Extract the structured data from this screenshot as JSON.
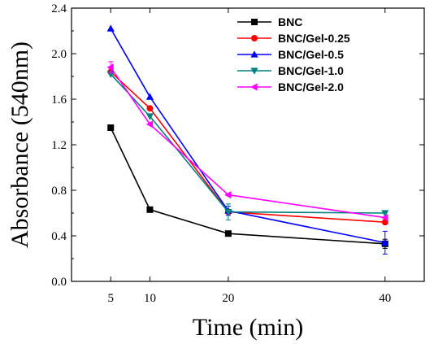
{
  "chart_data": {
    "type": "line",
    "xlabel": "Time (min)",
    "ylabel": "Absorbance (540nm)",
    "x": [
      5,
      10,
      20,
      40
    ],
    "xlim": [
      0,
      45
    ],
    "ylim": [
      0.0,
      2.4
    ],
    "xticks": [
      "5",
      "10",
      "20",
      "40"
    ],
    "yticks": [
      "0.0",
      "0.4",
      "0.8",
      "1.2",
      "1.6",
      "2.0",
      "2.4"
    ],
    "legend_position": "top-right",
    "series": [
      {
        "name": "BNC",
        "values": [
          1.35,
          0.63,
          0.42,
          0.33
        ],
        "color": "#000000",
        "marker": "square",
        "errors": [
          0,
          0,
          0,
          0.04
        ]
      },
      {
        "name": "BNC/Gel-0.25",
        "values": [
          1.84,
          1.52,
          0.61,
          0.52
        ],
        "color": "#ff0000",
        "marker": "circle",
        "errors": [
          0,
          0,
          0,
          0
        ]
      },
      {
        "name": "BNC/Gel-0.5",
        "values": [
          2.22,
          1.62,
          0.62,
          0.34
        ],
        "color": "#0000ff",
        "marker": "triangle-up",
        "errors": [
          0,
          0,
          0.04,
          0.1
        ]
      },
      {
        "name": "BNC/Gel-1.0",
        "values": [
          1.82,
          1.45,
          0.61,
          0.6
        ],
        "color": "#008080",
        "marker": "triangle-down",
        "errors": [
          0,
          0,
          0.07,
          0
        ]
      },
      {
        "name": "BNC/Gel-2.0",
        "values": [
          1.88,
          1.38,
          0.76,
          0.56
        ],
        "color": "#ff00ff",
        "marker": "triangle-left",
        "errors": [
          0.05,
          0,
          0,
          0
        ]
      }
    ]
  }
}
